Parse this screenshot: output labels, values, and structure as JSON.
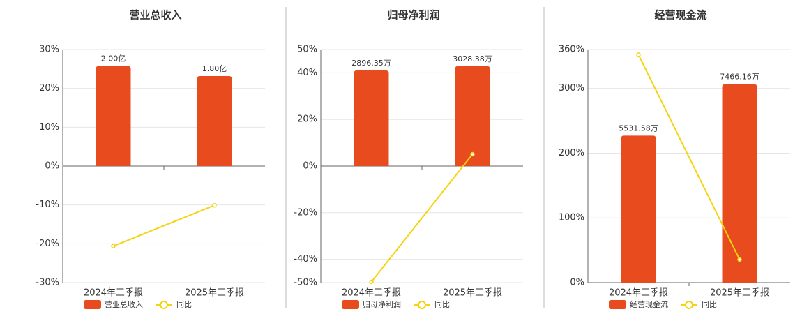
{
  "chart_data": [
    {
      "type": "bar",
      "title": "营业总收入",
      "categories": [
        "2024年三季报",
        "2025年三季报"
      ],
      "ylim": [
        -30,
        30
      ],
      "yticks": [
        {
          "value": 30,
          "label": "30%"
        },
        {
          "value": 20,
          "label": "20%"
        },
        {
          "value": 10,
          "label": "10%"
        },
        {
          "value": 0,
          "label": "0%"
        },
        {
          "value": -10,
          "label": "-10%"
        },
        {
          "value": -20,
          "label": "-20%"
        },
        {
          "value": -30,
          "label": "-30%"
        }
      ],
      "y2lim": [
        -2.33,
        2.33
      ],
      "grid": true,
      "series": [
        {
          "name": "营业总收入",
          "type": "bar",
          "axis": "y2",
          "color": "#e84c1e",
          "values": [
            2.0,
            1.8
          ],
          "value_labels": [
            "2.00亿",
            "1.80亿"
          ]
        },
        {
          "name": "同比",
          "type": "line",
          "color": "#f5d40f",
          "values": [
            -20.6,
            -10.1
          ]
        }
      ]
    },
    {
      "type": "bar",
      "title": "归母净利润",
      "categories": [
        "2024年三季报",
        "2025年三季报"
      ],
      "ylim": [
        -50,
        50
      ],
      "yticks": [
        {
          "value": 50,
          "label": "50%"
        },
        {
          "value": 40,
          "label": "40%"
        },
        {
          "value": 20,
          "label": "20%"
        },
        {
          "value": 0,
          "label": "0%"
        },
        {
          "value": -20,
          "label": "-20%"
        },
        {
          "value": -40,
          "label": "-40%"
        },
        {
          "value": -50,
          "label": "-50%"
        }
      ],
      "y2lim": [
        -3532,
        3532
      ],
      "grid": true,
      "series": [
        {
          "name": "归母净利润",
          "type": "bar",
          "axis": "y2",
          "color": "#e84c1e",
          "values": [
            2896.35,
            3028.38
          ],
          "value_labels": [
            "2896.35万",
            "3028.38万"
          ]
        },
        {
          "name": "同比",
          "type": "line",
          "color": "#f5d40f",
          "values": [
            -49.7,
            5.1
          ]
        }
      ]
    },
    {
      "type": "bar",
      "title": "经营现金流",
      "categories": [
        "2024年三季报",
        "2025年三季报"
      ],
      "ylim": [
        0,
        360
      ],
      "yticks": [
        {
          "value": 360,
          "label": "360%"
        },
        {
          "value": 300,
          "label": "300%"
        },
        {
          "value": 200,
          "label": "200%"
        },
        {
          "value": 100,
          "label": "100%"
        },
        {
          "value": 0,
          "label": "0%"
        }
      ],
      "y2lim": [
        0,
        8772
      ],
      "grid": true,
      "series": [
        {
          "name": "经营现金流",
          "type": "bar",
          "axis": "y2",
          "color": "#e84c1e",
          "values": [
            5531.58,
            7466.16
          ],
          "value_labels": [
            "5531.58万",
            "7466.16万"
          ]
        },
        {
          "name": "同比",
          "type": "line",
          "color": "#f5d40f",
          "values": [
            352,
            35.6
          ]
        }
      ]
    }
  ]
}
